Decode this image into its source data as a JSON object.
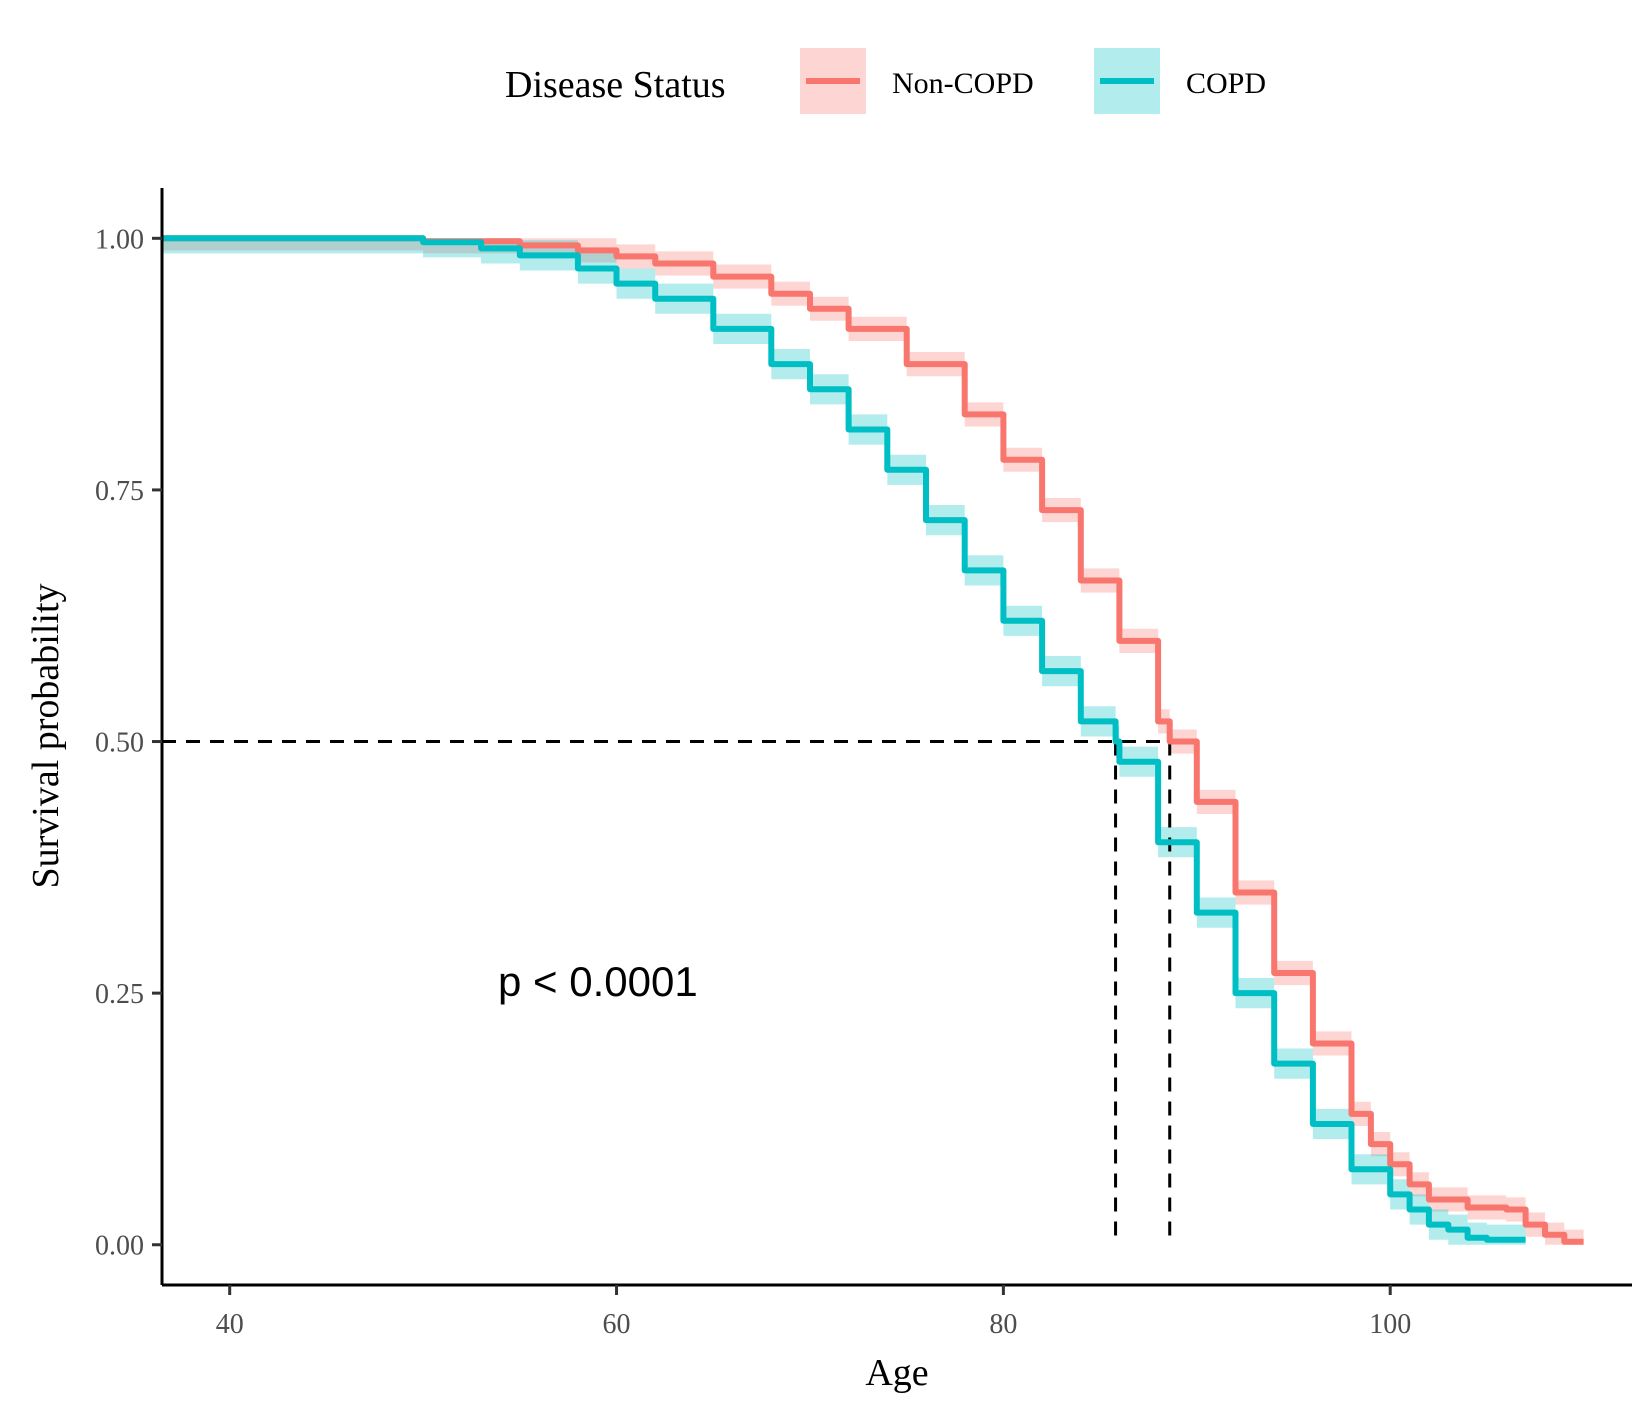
{
  "chart_data": {
    "type": "line",
    "subtype": "kaplan-meier survival curve",
    "xlabel": "Age",
    "ylabel": "Survival probability",
    "xlim": [
      36.5,
      112.5
    ],
    "ylim": [
      -0.04,
      1.05
    ],
    "x_ticks": [
      40,
      60,
      80,
      100
    ],
    "x_tick_labels": [
      "40",
      "60",
      "80",
      "100"
    ],
    "y_ticks": [
      0,
      0.25,
      0.5,
      0.75,
      1.0
    ],
    "y_tick_labels": [
      "0.00",
      "0.25",
      "0.50",
      "0.75",
      "1.00"
    ],
    "grid": false,
    "legend": {
      "title": "Disease Status",
      "position": "top",
      "entries": [
        "Non-COPD",
        "COPD"
      ]
    },
    "annotation": "p < 0.0001",
    "median_survival": {
      "y": 0.5,
      "COPD": 85.8,
      "Non-COPD": 88.6
    },
    "series": [
      {
        "name": "Non-COPD",
        "color": "#F8766D",
        "band_color": "#F8766D",
        "ci_halfwidth": 0.012,
        "x": [
          36.5,
          40,
          45,
          50,
          55,
          58,
          60,
          62,
          65,
          68,
          70,
          72,
          75,
          78,
          80,
          82,
          84,
          86,
          88,
          88.6,
          90,
          92,
          94,
          96,
          98,
          99,
          100,
          101,
          102,
          104,
          106,
          107,
          108,
          109,
          110
        ],
        "y": [
          1.0,
          1.0,
          1.0,
          0.997,
          0.993,
          0.988,
          0.982,
          0.975,
          0.962,
          0.945,
          0.93,
          0.91,
          0.875,
          0.825,
          0.78,
          0.73,
          0.66,
          0.6,
          0.52,
          0.5,
          0.44,
          0.35,
          0.27,
          0.2,
          0.13,
          0.1,
          0.08,
          0.06,
          0.045,
          0.037,
          0.035,
          0.02,
          0.01,
          0.003,
          0.003
        ]
      },
      {
        "name": "COPD",
        "color": "#00BFC4",
        "band_color": "#00BFC4",
        "ci_halfwidth": 0.015,
        "x": [
          36.5,
          40,
          45,
          50,
          53,
          55,
          58,
          60,
          62,
          65,
          68,
          70,
          72,
          74,
          76,
          78,
          80,
          82,
          84,
          85.8,
          86,
          88,
          90,
          92,
          94,
          96,
          98,
          100,
          101,
          102,
          103,
          104,
          105,
          106,
          107
        ],
        "y": [
          1.0,
          1.0,
          1.0,
          0.996,
          0.99,
          0.983,
          0.97,
          0.955,
          0.94,
          0.91,
          0.875,
          0.85,
          0.81,
          0.77,
          0.72,
          0.67,
          0.62,
          0.57,
          0.52,
          0.5,
          0.48,
          0.4,
          0.33,
          0.25,
          0.18,
          0.12,
          0.075,
          0.05,
          0.035,
          0.02,
          0.015,
          0.007,
          0.005,
          0.005,
          0.005
        ]
      }
    ]
  }
}
